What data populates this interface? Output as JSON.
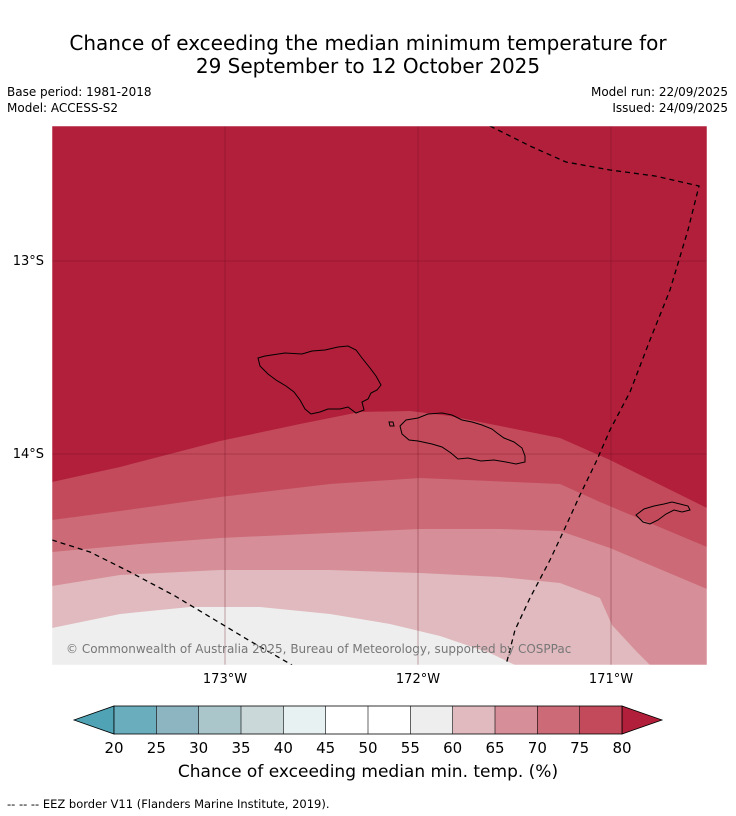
{
  "title": {
    "line1": "Chance of exceeding the median minimum temperature for",
    "line2": "29 September to 12 October 2025"
  },
  "meta": {
    "base_period": "Base period: 1981-2018",
    "model": "Model: ACCESS-S2",
    "model_run": "Model run: 22/09/2025",
    "issued": "Issued: 24/09/2025"
  },
  "map": {
    "lat_labels": [
      "13°S",
      "14°S"
    ],
    "lon_labels": [
      "173°W",
      "172°W",
      "171°W"
    ],
    "copyright": "© Commonwealth of Australia 2025, Bureau of Meteorology, supported by COSPPac",
    "land_outline_color": "#000000",
    "eez_line_color": "#000000"
  },
  "colorbar": {
    "title": "Chance of exceeding median min. temp. (%)",
    "ticks": [
      "20",
      "25",
      "30",
      "35",
      "40",
      "45",
      "50",
      "55",
      "60",
      "65",
      "70",
      "75",
      "80"
    ],
    "colors": [
      "#6aaebd",
      "#8db5c1",
      "#aac6cb",
      "#cad8d9",
      "#e8f1f1",
      "#ffffff",
      "#ffffff",
      "#eeeeee",
      "#e0babe",
      "#d68f98",
      "#cc6a77",
      "#c34a5a"
    ],
    "under_color": "#4fa3b4",
    "over_color": "#b11f3a"
  },
  "footnote": "--  --  -- EEZ border V11 (Flanders Marine Institute, 2019)."
}
